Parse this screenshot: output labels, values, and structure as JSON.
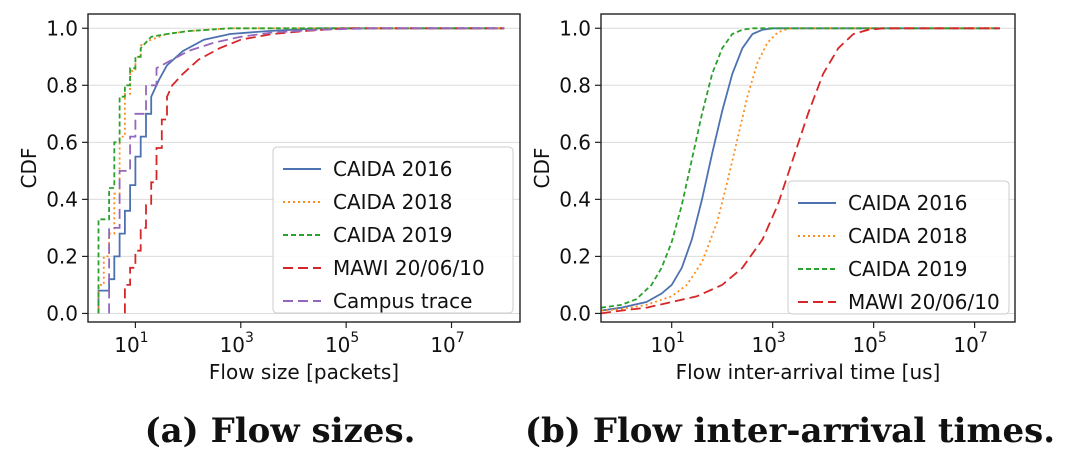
{
  "chart_data": [
    {
      "type": "line",
      "subtype": "step-cdf",
      "caption": "(a) Flow sizes.",
      "xlabel": "Flow size [packets]",
      "ylabel": "CDF",
      "xscale": "log",
      "xlim_log10": [
        0.1,
        8.3
      ],
      "ylim": [
        -0.03,
        1.05
      ],
      "xticks": [
        {
          "base": "10",
          "exp": "1",
          "log": 1
        },
        {
          "base": "10",
          "exp": "3",
          "log": 3
        },
        {
          "base": "10",
          "exp": "5",
          "log": 5
        },
        {
          "base": "10",
          "exp": "7",
          "log": 7
        }
      ],
      "yticks": [
        "0.0",
        "0.2",
        "0.4",
        "0.6",
        "0.8",
        "1.0"
      ],
      "grid": "horizontal",
      "legend_position": "lower-right",
      "series": [
        {
          "name": "CAIDA 2016",
          "color": "#4c72b0",
          "dash": "solid",
          "points": [
            [
              0.3,
              0.0
            ],
            [
              0.3,
              0.08
            ],
            [
              0.5,
              0.08
            ],
            [
              0.5,
              0.12
            ],
            [
              0.6,
              0.12
            ],
            [
              0.6,
              0.2
            ],
            [
              0.7,
              0.2
            ],
            [
              0.7,
              0.28
            ],
            [
              0.8,
              0.28
            ],
            [
              0.8,
              0.36
            ],
            [
              0.9,
              0.36
            ],
            [
              0.9,
              0.45
            ],
            [
              1.0,
              0.45
            ],
            [
              1.0,
              0.55
            ],
            [
              1.1,
              0.55
            ],
            [
              1.1,
              0.62
            ],
            [
              1.2,
              0.62
            ],
            [
              1.2,
              0.7
            ],
            [
              1.3,
              0.7
            ],
            [
              1.3,
              0.76
            ],
            [
              1.45,
              0.82
            ],
            [
              1.6,
              0.87
            ],
            [
              1.9,
              0.92
            ],
            [
              2.3,
              0.96
            ],
            [
              2.8,
              0.98
            ],
            [
              3.5,
              0.99
            ],
            [
              4.5,
              1.0
            ],
            [
              8.0,
              1.0
            ]
          ]
        },
        {
          "name": "CAIDA 2018",
          "color": "#ff8c1a",
          "dash": "dotted",
          "points": [
            [
              0.3,
              0.0
            ],
            [
              0.3,
              0.1
            ],
            [
              0.4,
              0.1
            ],
            [
              0.4,
              0.2
            ],
            [
              0.5,
              0.2
            ],
            [
              0.5,
              0.28
            ],
            [
              0.6,
              0.28
            ],
            [
              0.6,
              0.42
            ],
            [
              0.7,
              0.42
            ],
            [
              0.7,
              0.62
            ],
            [
              0.8,
              0.62
            ],
            [
              0.8,
              0.77
            ],
            [
              0.9,
              0.77
            ],
            [
              0.9,
              0.85
            ],
            [
              1.0,
              0.85
            ],
            [
              1.0,
              0.9
            ],
            [
              1.1,
              0.9
            ],
            [
              1.1,
              0.94
            ],
            [
              1.3,
              0.96
            ],
            [
              1.6,
              0.98
            ],
            [
              2.0,
              0.99
            ],
            [
              2.8,
              1.0
            ],
            [
              8.0,
              1.0
            ]
          ]
        },
        {
          "name": "CAIDA 2019",
          "color": "#2ca02c",
          "dash": "short-dash",
          "points": [
            [
              0.3,
              0.0
            ],
            [
              0.3,
              0.33
            ],
            [
              0.5,
              0.33
            ],
            [
              0.5,
              0.44
            ],
            [
              0.6,
              0.44
            ],
            [
              0.6,
              0.6
            ],
            [
              0.7,
              0.6
            ],
            [
              0.7,
              0.76
            ],
            [
              0.8,
              0.76
            ],
            [
              0.8,
              0.8
            ],
            [
              0.9,
              0.8
            ],
            [
              0.9,
              0.86
            ],
            [
              1.0,
              0.86
            ],
            [
              1.0,
              0.9
            ],
            [
              1.1,
              0.9
            ],
            [
              1.1,
              0.93
            ],
            [
              1.3,
              0.97
            ],
            [
              1.6,
              0.98
            ],
            [
              2.0,
              0.99
            ],
            [
              2.8,
              1.0
            ],
            [
              8.0,
              1.0
            ]
          ]
        },
        {
          "name": "MAWI 20/06/10",
          "color": "#d62728",
          "dash": "long-dash",
          "points": [
            [
              0.8,
              0.0
            ],
            [
              0.8,
              0.1
            ],
            [
              0.9,
              0.1
            ],
            [
              0.9,
              0.16
            ],
            [
              1.0,
              0.16
            ],
            [
              1.0,
              0.22
            ],
            [
              1.1,
              0.22
            ],
            [
              1.1,
              0.3
            ],
            [
              1.2,
              0.3
            ],
            [
              1.2,
              0.38
            ],
            [
              1.3,
              0.38
            ],
            [
              1.3,
              0.46
            ],
            [
              1.4,
              0.46
            ],
            [
              1.4,
              0.58
            ],
            [
              1.5,
              0.58
            ],
            [
              1.5,
              0.68
            ],
            [
              1.6,
              0.68
            ],
            [
              1.6,
              0.76
            ],
            [
              1.7,
              0.8
            ],
            [
              1.9,
              0.84
            ],
            [
              2.2,
              0.89
            ],
            [
              2.6,
              0.93
            ],
            [
              3.0,
              0.96
            ],
            [
              3.6,
              0.98
            ],
            [
              4.2,
              0.99
            ],
            [
              5.0,
              1.0
            ],
            [
              8.0,
              1.0
            ]
          ]
        },
        {
          "name": "Campus trace",
          "color": "#9467bd",
          "dash": "long-dash",
          "points": [
            [
              0.5,
              0.0
            ],
            [
              0.5,
              0.3
            ],
            [
              0.7,
              0.3
            ],
            [
              0.7,
              0.5
            ],
            [
              0.9,
              0.5
            ],
            [
              0.9,
              0.62
            ],
            [
              1.0,
              0.62
            ],
            [
              1.0,
              0.7
            ],
            [
              1.2,
              0.7
            ],
            [
              1.2,
              0.8
            ],
            [
              1.4,
              0.8
            ],
            [
              1.4,
              0.86
            ],
            [
              1.6,
              0.88
            ],
            [
              2.0,
              0.92
            ],
            [
              2.5,
              0.95
            ],
            [
              3.0,
              0.97
            ],
            [
              3.6,
              0.985
            ],
            [
              4.5,
              0.995
            ],
            [
              5.5,
              1.0
            ],
            [
              8.0,
              1.0
            ]
          ]
        }
      ]
    },
    {
      "type": "line",
      "subtype": "cdf",
      "caption": "(b) Flow inter-arrival times.",
      "xlabel": "Flow inter-arrival time [us]",
      "ylabel": "CDF",
      "xscale": "log",
      "xlim_log10": [
        -0.4,
        7.8
      ],
      "ylim": [
        -0.03,
        1.05
      ],
      "xticks": [
        {
          "base": "10",
          "exp": "1",
          "log": 1
        },
        {
          "base": "10",
          "exp": "3",
          "log": 3
        },
        {
          "base": "10",
          "exp": "5",
          "log": 5
        },
        {
          "base": "10",
          "exp": "7",
          "log": 7
        }
      ],
      "yticks": [
        "0.0",
        "0.2",
        "0.4",
        "0.6",
        "0.8",
        "1.0"
      ],
      "grid": "horizontal",
      "legend_position": "lower-right",
      "series": [
        {
          "name": "CAIDA 2016",
          "color": "#4c72b0",
          "dash": "solid",
          "points": [
            [
              -0.4,
              0.01
            ],
            [
              0.0,
              0.02
            ],
            [
              0.5,
              0.04
            ],
            [
              0.8,
              0.07
            ],
            [
              1.0,
              0.1
            ],
            [
              1.2,
              0.16
            ],
            [
              1.4,
              0.26
            ],
            [
              1.6,
              0.4
            ],
            [
              1.8,
              0.56
            ],
            [
              2.0,
              0.71
            ],
            [
              2.2,
              0.84
            ],
            [
              2.4,
              0.93
            ],
            [
              2.6,
              0.98
            ],
            [
              2.8,
              0.995
            ],
            [
              3.0,
              1.0
            ],
            [
              7.5,
              1.0
            ]
          ]
        },
        {
          "name": "CAIDA 2018",
          "color": "#ff8c1a",
          "dash": "dotted",
          "points": [
            [
              -0.4,
              0.01
            ],
            [
              0.0,
              0.015
            ],
            [
              0.5,
              0.03
            ],
            [
              1.0,
              0.06
            ],
            [
              1.3,
              0.1
            ],
            [
              1.6,
              0.18
            ],
            [
              1.9,
              0.32
            ],
            [
              2.1,
              0.46
            ],
            [
              2.3,
              0.61
            ],
            [
              2.5,
              0.76
            ],
            [
              2.7,
              0.88
            ],
            [
              2.9,
              0.95
            ],
            [
              3.1,
              0.985
            ],
            [
              3.3,
              0.998
            ],
            [
              3.5,
              1.0
            ],
            [
              7.5,
              1.0
            ]
          ]
        },
        {
          "name": "CAIDA 2019",
          "color": "#2ca02c",
          "dash": "short-dash",
          "points": [
            [
              -0.4,
              0.02
            ],
            [
              0.0,
              0.03
            ],
            [
              0.3,
              0.05
            ],
            [
              0.6,
              0.1
            ],
            [
              0.8,
              0.16
            ],
            [
              1.0,
              0.25
            ],
            [
              1.2,
              0.38
            ],
            [
              1.4,
              0.54
            ],
            [
              1.6,
              0.7
            ],
            [
              1.8,
              0.84
            ],
            [
              2.0,
              0.93
            ],
            [
              2.2,
              0.98
            ],
            [
              2.4,
              0.995
            ],
            [
              2.6,
              1.0
            ],
            [
              7.5,
              1.0
            ]
          ]
        },
        {
          "name": "MAWI 20/06/10",
          "color": "#d62728",
          "dash": "long-dash",
          "points": [
            [
              -0.4,
              0.0
            ],
            [
              0.0,
              0.01
            ],
            [
              0.5,
              0.02
            ],
            [
              1.0,
              0.04
            ],
            [
              1.5,
              0.06
            ],
            [
              2.0,
              0.1
            ],
            [
              2.4,
              0.16
            ],
            [
              2.8,
              0.26
            ],
            [
              3.1,
              0.38
            ],
            [
              3.4,
              0.54
            ],
            [
              3.7,
              0.7
            ],
            [
              4.0,
              0.84
            ],
            [
              4.3,
              0.93
            ],
            [
              4.6,
              0.98
            ],
            [
              4.9,
              0.995
            ],
            [
              5.2,
              1.0
            ],
            [
              7.5,
              1.0
            ]
          ]
        }
      ]
    }
  ]
}
